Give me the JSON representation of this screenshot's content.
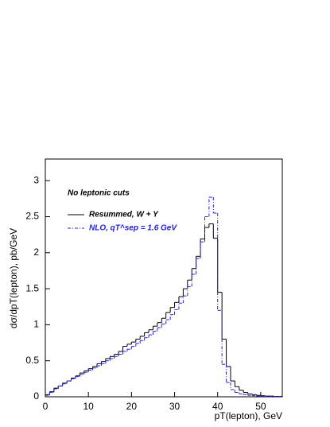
{
  "chart_data": {
    "type": "histogram-step",
    "xlabel": "pT(lepton), GeV",
    "ylabel": "dσ/dpT(lepton), pb/GeV",
    "annotation": "No leptonic cuts",
    "bins": [
      0,
      1,
      2,
      3,
      4,
      5,
      6,
      7,
      8,
      9,
      10,
      11,
      12,
      13,
      14,
      15,
      16,
      17,
      18,
      19,
      20,
      21,
      22,
      23,
      24,
      25,
      26,
      27,
      28,
      29,
      30,
      31,
      32,
      33,
      34,
      35,
      36,
      37,
      38,
      39,
      40,
      41,
      42,
      43,
      44,
      45,
      46,
      47,
      48,
      49,
      50,
      51,
      52,
      53,
      54,
      55
    ],
    "series": [
      {
        "name": "Resummed, W + Y",
        "color": "#000000",
        "dash": "solid",
        "values": [
          0.03,
          0.07,
          0.12,
          0.15,
          0.19,
          0.22,
          0.26,
          0.29,
          0.33,
          0.36,
          0.39,
          0.42,
          0.46,
          0.49,
          0.53,
          0.56,
          0.59,
          0.63,
          0.7,
          0.73,
          0.76,
          0.8,
          0.84,
          0.89,
          0.93,
          0.98,
          1.03,
          1.09,
          1.17,
          1.24,
          1.31,
          1.39,
          1.5,
          1.62,
          1.78,
          1.95,
          2.19,
          2.35,
          2.4,
          2.2,
          1.45,
          0.8,
          0.42,
          0.22,
          0.14,
          0.09,
          0.06,
          0.04,
          0.03,
          0.02,
          0.015,
          0.01,
          0.01,
          0.005,
          0.005
        ]
      },
      {
        "name": "NLO, qT^sep = 1.6 GeV",
        "color": "#2222dd",
        "dash": "dashdot",
        "values": [
          0.02,
          0.06,
          0.11,
          0.15,
          0.18,
          0.22,
          0.25,
          0.28,
          0.31,
          0.34,
          0.37,
          0.4,
          0.43,
          0.46,
          0.5,
          0.53,
          0.56,
          0.59,
          0.63,
          0.66,
          0.7,
          0.74,
          0.78,
          0.82,
          0.86,
          0.91,
          0.96,
          1.01,
          1.07,
          1.14,
          1.21,
          1.3,
          1.4,
          1.53,
          1.7,
          1.92,
          2.15,
          2.5,
          2.77,
          2.55,
          1.2,
          0.45,
          0.2,
          0.1,
          0.06,
          0.04,
          0.03,
          0.02,
          0.015,
          0.01,
          0.008,
          0.006,
          0.005,
          0.004,
          0.003
        ]
      }
    ],
    "xlim": [
      0,
      55
    ],
    "ylim": [
      0,
      3.3
    ],
    "xticks": [
      0,
      10,
      20,
      30,
      40,
      50
    ],
    "yticks": [
      0,
      0.5,
      1,
      1.5,
      2,
      2.5,
      3
    ]
  }
}
